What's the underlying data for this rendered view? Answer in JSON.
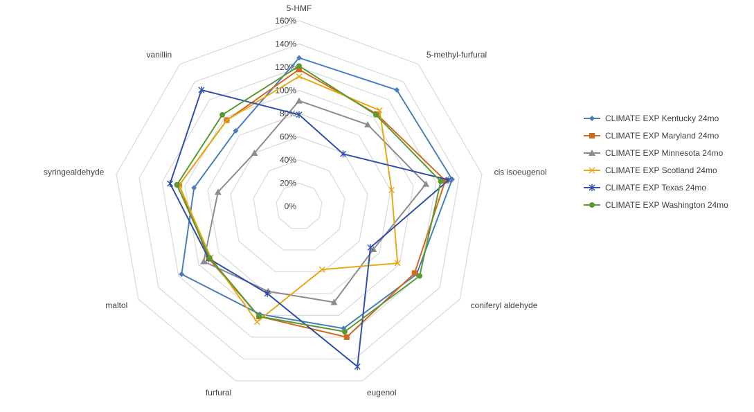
{
  "chart_data": {
    "type": "radar",
    "title": "",
    "axes": [
      "5-HMF",
      "5-methyl-furfural",
      "cis isoeugenol",
      "coniferyl aldehyde",
      "eugenol",
      "furfural",
      "maltol",
      "syringealdehyde",
      "vanillin"
    ],
    "rlim": [
      0,
      160
    ],
    "ticks": [
      "0%",
      "20%",
      "40%",
      "60%",
      "80%",
      "100%",
      "120%",
      "140%",
      "160%"
    ],
    "grid": true,
    "legend_position": "right",
    "series": [
      {
        "name": "CLIMATE EXP Kentucky 24mo",
        "color": "#4a7ebb",
        "marker": "diamond",
        "values": [
          128,
          131,
          134,
          117,
          112,
          99,
          117,
          92,
          85
        ]
      },
      {
        "name": "CLIMATE EXP Maryland 24mo",
        "color": "#d2691e",
        "marker": "square",
        "values": [
          118,
          104,
          128,
          115,
          120,
          101,
          90,
          105,
          97
        ]
      },
      {
        "name": "CLIMATE EXP Minnesota 24mo",
        "color": "#8c8c8c",
        "marker": "triangle",
        "values": [
          91,
          92,
          111,
          74,
          88,
          78,
          95,
          71,
          60
        ]
      },
      {
        "name": "CLIMATE EXP Scotland 24mo",
        "color": "#e6a817",
        "marker": "x",
        "values": [
          112,
          108,
          81,
          98,
          58,
          106,
          88,
          105,
          97
        ]
      },
      {
        "name": "CLIMATE EXP Texas 24mo",
        "color": "#2f4fa8",
        "marker": "star",
        "values": [
          79,
          59,
          131,
          71,
          147,
          80,
          90,
          113,
          131
        ]
      },
      {
        "name": "CLIMATE EXP Washington 24mo",
        "color": "#5a9a32",
        "marker": "circle",
        "values": [
          121,
          103,
          124,
          120,
          115,
          101,
          89,
          107,
          103
        ]
      }
    ]
  }
}
